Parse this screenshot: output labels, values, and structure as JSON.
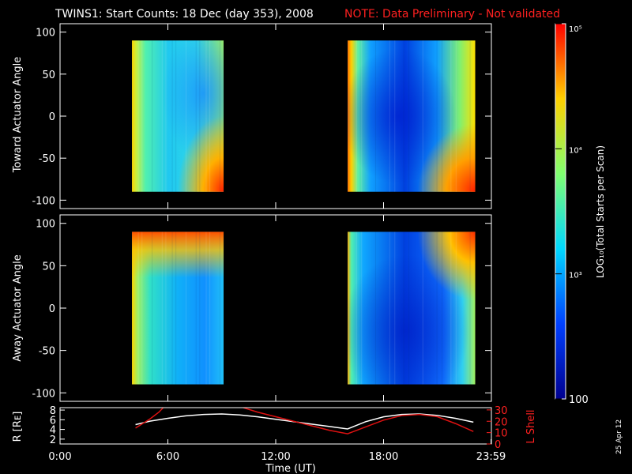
{
  "title": "TWINS1: Start Counts: 18 Dec (day 353), 2008",
  "note": "NOTE: Data Preliminary - Not validated",
  "date_stamp": "25 Apr 12",
  "colors": {
    "title": "#ffffff",
    "note": "#ff2020",
    "r_line": "#ffffff",
    "l_line": "#dd1111"
  },
  "chart_data": [
    {
      "type": "heatmap",
      "panel": "toward",
      "ylabel": "Toward Actuator Angle",
      "xlim": [
        0,
        24
      ],
      "ylim": [
        -110,
        110
      ],
      "yticks": [
        "100",
        "50",
        "0",
        "-50",
        "-100"
      ],
      "ytick_values": [
        100,
        50,
        0,
        -50,
        -100
      ],
      "data_blocks": [
        {
          "x_start_hour": 4.0,
          "x_end_hour": 9.1,
          "y_range": [
            -90,
            90
          ]
        },
        {
          "x_start_hour": 16.0,
          "x_end_hour": 23.1,
          "y_range": [
            -90,
            90
          ]
        }
      ]
    },
    {
      "type": "heatmap",
      "panel": "away",
      "ylabel": "Away Actuator Angle",
      "xlim": [
        0,
        24
      ],
      "ylim": [
        -110,
        110
      ],
      "yticks": [
        "100",
        "50",
        "0",
        "-50",
        "-100"
      ],
      "ytick_values": [
        100,
        50,
        0,
        -50,
        -100
      ],
      "data_blocks": [
        {
          "x_start_hour": 4.0,
          "x_end_hour": 9.1,
          "y_range": [
            -90,
            90
          ]
        },
        {
          "x_start_hour": 16.0,
          "x_end_hour": 23.1,
          "y_range": [
            -90,
            90
          ]
        }
      ]
    },
    {
      "type": "line",
      "panel": "orbit",
      "ylabel_left": "R [Rᴇ]",
      "ylabel_right": "L Shell",
      "xlabel": "Time (UT)",
      "xlim": [
        0,
        24
      ],
      "xticks": [
        "0:00",
        "6:00",
        "12:00",
        "18:00",
        "23:59"
      ],
      "xtick_values": [
        0,
        6,
        12,
        18,
        23.98
      ],
      "ylim_left": [
        1,
        8.5
      ],
      "yticks_left": [
        "8",
        "6",
        "4",
        "2"
      ],
      "ytick_values_left": [
        8,
        6,
        4,
        2
      ],
      "ylim_right": [
        0,
        32
      ],
      "yticks_right": [
        "30",
        "20",
        "10",
        "0"
      ],
      "ytick_values_right": [
        30,
        20,
        10,
        0
      ],
      "series": [
        {
          "axis": "left",
          "x": [
            4.2,
            5,
            6,
            7,
            8,
            9,
            10,
            11,
            12,
            13,
            14,
            15,
            16,
            17,
            18,
            19,
            20,
            21,
            22,
            23
          ],
          "y": [
            5.0,
            5.7,
            6.3,
            6.8,
            7.1,
            7.2,
            7.0,
            6.6,
            6.1,
            5.6,
            5.1,
            4.6,
            4.1,
            5.6,
            6.6,
            7.1,
            7.2,
            6.9,
            6.3,
            5.5
          ]
        },
        {
          "axis": "right",
          "x": [
            4.2,
            5.0,
            5.5,
            5.8
          ],
          "y": [
            14,
            22,
            28,
            33
          ]
        },
        {
          "axis": "right",
          "x": [
            10.2,
            11,
            12,
            13,
            14,
            15,
            16,
            17,
            18,
            19,
            20,
            21,
            22,
            23
          ],
          "y": [
            32,
            28,
            24,
            20,
            16,
            12,
            9,
            15,
            21,
            25,
            26,
            24,
            18,
            11
          ]
        }
      ]
    }
  ],
  "colorbar": {
    "type": "log",
    "label": "LOG₁₀(Total Starts per Scan)",
    "tick_labels": [
      "10⁵",
      "10⁴",
      "10³",
      "100"
    ],
    "tick_values": [
      100000,
      10000,
      1000,
      100
    ],
    "range": [
      100,
      100000
    ]
  }
}
